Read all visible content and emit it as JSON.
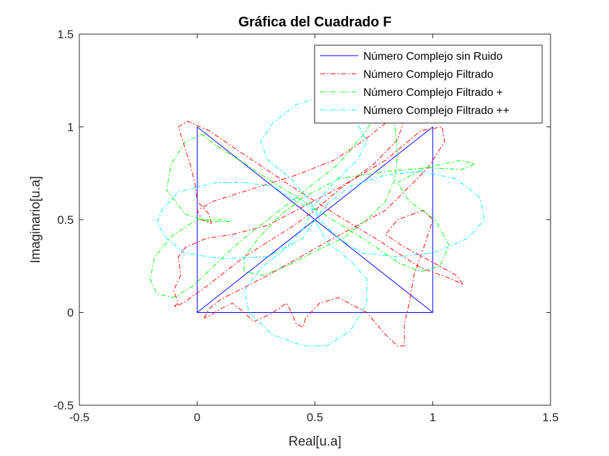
{
  "chart_data": {
    "type": "line",
    "title": "Gráfica del Cuadrado F",
    "xlabel": "Real[u.a]",
    "ylabel": "Imaginario[u.a]",
    "xlim": [
      -0.5,
      1.5
    ],
    "ylim": [
      -0.5,
      1.5
    ],
    "xticks": [
      -0.5,
      0,
      0.5,
      1,
      1.5
    ],
    "yticks": [
      -0.5,
      0,
      0.5,
      1,
      1.5
    ],
    "xtick_labels": [
      "-0.5",
      "0",
      "0.5",
      "1",
      "1.5"
    ],
    "ytick_labels": [
      "-0.5",
      "0",
      "0.5",
      "1",
      "1.5"
    ],
    "grid": false,
    "legend_position": "top-right",
    "series": [
      {
        "name": "Número Complejo sin Ruido",
        "color": "#0000ff",
        "dash": "solid",
        "points": [
          [
            0,
            0
          ],
          [
            1,
            0
          ],
          [
            1,
            1
          ],
          [
            0,
            0
          ],
          [
            0,
            1
          ],
          [
            1,
            0
          ]
        ]
      },
      {
        "name": "Número Complejo Filtrado",
        "color": "#ff0000",
        "dash": "dashdot",
        "points": [
          [
            0.03,
            -0.03
          ],
          [
            0.05,
            0.02
          ],
          [
            0.1,
            0.07
          ],
          [
            0.3,
            0.2
          ],
          [
            0.55,
            0.38
          ],
          [
            0.8,
            0.55
          ],
          [
            0.98,
            0.78
          ],
          [
            1.05,
            0.92
          ],
          [
            1.04,
            1.0
          ],
          [
            0.95,
            0.98
          ],
          [
            0.8,
            0.82
          ],
          [
            0.6,
            0.67
          ],
          [
            0.45,
            0.57
          ],
          [
            0.3,
            0.47
          ],
          [
            0.15,
            0.42
          ],
          [
            0.04,
            0.4
          ],
          [
            -0.05,
            0.35
          ],
          [
            -0.08,
            0.3
          ],
          [
            -0.07,
            0.2
          ],
          [
            -0.1,
            0.12
          ],
          [
            -0.08,
            0.05
          ],
          [
            -0.1,
            0.03
          ],
          [
            -0.06,
            0.05
          ],
          [
            0.05,
            0.15
          ],
          [
            0.2,
            0.3
          ],
          [
            0.4,
            0.46
          ],
          [
            0.5,
            0.55
          ],
          [
            0.6,
            0.66
          ],
          [
            0.75,
            0.8
          ],
          [
            0.85,
            0.93
          ],
          [
            0.88,
            1.04
          ],
          [
            0.84,
            1.08
          ],
          [
            0.8,
            1.02
          ],
          [
            0.7,
            0.92
          ],
          [
            0.58,
            0.82
          ],
          [
            0.42,
            0.74
          ],
          [
            0.22,
            0.66
          ],
          [
            0.07,
            0.6
          ],
          [
            0.0,
            0.55
          ],
          [
            0.02,
            0.5
          ],
          [
            0.06,
            0.48
          ],
          [
            0.05,
            0.53
          ],
          [
            0.0,
            0.6
          ],
          [
            -0.01,
            0.7
          ],
          [
            -0.03,
            0.8
          ],
          [
            -0.06,
            0.92
          ],
          [
            -0.08,
            1.0
          ],
          [
            -0.04,
            1.03
          ],
          [
            0.05,
            0.98
          ],
          [
            0.2,
            0.85
          ],
          [
            0.4,
            0.68
          ],
          [
            0.6,
            0.52
          ],
          [
            0.78,
            0.38
          ],
          [
            0.95,
            0.24
          ],
          [
            1.08,
            0.18
          ],
          [
            1.13,
            0.15
          ],
          [
            1.1,
            0.2
          ],
          [
            1.0,
            0.27
          ],
          [
            0.87,
            0.36
          ],
          [
            0.8,
            0.42
          ],
          [
            0.85,
            0.5
          ],
          [
            0.96,
            0.55
          ],
          [
            1.0,
            0.5
          ],
          [
            0.97,
            0.38
          ],
          [
            0.92,
            0.2
          ],
          [
            0.9,
            0.05
          ],
          [
            0.88,
            -0.06
          ],
          [
            0.88,
            -0.18
          ],
          [
            0.85,
            -0.18
          ],
          [
            0.8,
            -0.12
          ],
          [
            0.72,
            0.0
          ],
          [
            0.6,
            0.08
          ],
          [
            0.52,
            0.05
          ],
          [
            0.46,
            -0.03
          ],
          [
            0.45,
            -0.08
          ],
          [
            0.42,
            -0.06
          ],
          [
            0.4,
            0.0
          ],
          [
            0.38,
            0.05
          ],
          [
            0.31,
            -0.01
          ],
          [
            0.24,
            -0.05
          ],
          [
            0.2,
            0.0
          ],
          [
            0.15,
            0.05
          ],
          [
            0.1,
            0.02
          ],
          [
            0.05,
            -0.02
          ],
          [
            0.03,
            -0.03
          ]
        ]
      },
      {
        "name": "Número Complejo Filtrado +",
        "color": "#00ff00",
        "dash": "dashdot",
        "points": [
          [
            0.14,
            0.49
          ],
          [
            0.05,
            0.49
          ],
          [
            -0.05,
            0.53
          ],
          [
            -0.13,
            0.66
          ],
          [
            -0.11,
            0.8
          ],
          [
            -0.05,
            0.92
          ],
          [
            0.02,
            0.96
          ],
          [
            0.08,
            0.9
          ],
          [
            0.18,
            0.82
          ],
          [
            0.3,
            0.72
          ],
          [
            0.45,
            0.6
          ],
          [
            0.6,
            0.48
          ],
          [
            0.75,
            0.36
          ],
          [
            0.85,
            0.27
          ],
          [
            0.95,
            0.22
          ],
          [
            1.03,
            0.25
          ],
          [
            1.07,
            0.36
          ],
          [
            1.01,
            0.5
          ],
          [
            0.9,
            0.6
          ],
          [
            0.85,
            0.7
          ],
          [
            0.97,
            0.78
          ],
          [
            1.12,
            0.82
          ],
          [
            1.18,
            0.8
          ],
          [
            1.12,
            0.77
          ],
          [
            0.98,
            0.78
          ],
          [
            0.8,
            0.76
          ],
          [
            0.6,
            0.72
          ],
          [
            0.45,
            0.62
          ],
          [
            0.35,
            0.52
          ],
          [
            0.26,
            0.4
          ],
          [
            0.2,
            0.3
          ],
          [
            0.2,
            0.22
          ],
          [
            0.28,
            0.2
          ],
          [
            0.38,
            0.25
          ],
          [
            0.5,
            0.33
          ],
          [
            0.62,
            0.4
          ],
          [
            0.72,
            0.5
          ],
          [
            0.8,
            0.6
          ],
          [
            0.84,
            0.72
          ],
          [
            0.85,
            0.85
          ],
          [
            0.84,
            1.0
          ],
          [
            0.82,
            1.1
          ],
          [
            0.77,
            1.08
          ],
          [
            0.7,
            0.95
          ],
          [
            0.6,
            0.8
          ],
          [
            0.45,
            0.65
          ],
          [
            0.3,
            0.5
          ],
          [
            0.18,
            0.38
          ],
          [
            0.07,
            0.25
          ],
          [
            -0.02,
            0.14
          ],
          [
            -0.1,
            0.08
          ],
          [
            -0.17,
            0.1
          ],
          [
            -0.2,
            0.18
          ],
          [
            -0.18,
            0.3
          ],
          [
            -0.1,
            0.42
          ],
          [
            0.0,
            0.5
          ],
          [
            0.1,
            0.5
          ],
          [
            0.14,
            0.49
          ]
        ]
      },
      {
        "name": "Número Complejo Filtrado ++",
        "color": "#00ffff",
        "dash": "dashdot",
        "points": [
          [
            0.5,
            0.55
          ],
          [
            0.42,
            0.6
          ],
          [
            0.32,
            0.68
          ],
          [
            0.2,
            0.7
          ],
          [
            0.08,
            0.7
          ],
          [
            -0.08,
            0.65
          ],
          [
            -0.15,
            0.55
          ],
          [
            -0.17,
            0.48
          ],
          [
            -0.13,
            0.4
          ],
          [
            -0.05,
            0.32
          ],
          [
            0.1,
            0.29
          ],
          [
            0.3,
            0.3
          ],
          [
            0.45,
            0.4
          ],
          [
            0.5,
            0.5
          ],
          [
            0.55,
            0.58
          ],
          [
            0.65,
            0.68
          ],
          [
            0.8,
            0.74
          ],
          [
            0.95,
            0.76
          ],
          [
            1.1,
            0.72
          ],
          [
            1.2,
            0.62
          ],
          [
            1.22,
            0.5
          ],
          [
            1.15,
            0.4
          ],
          [
            1.0,
            0.32
          ],
          [
            0.85,
            0.3
          ],
          [
            0.7,
            0.32
          ],
          [
            0.6,
            0.4
          ],
          [
            0.52,
            0.5
          ],
          [
            0.48,
            0.6
          ],
          [
            0.4,
            0.72
          ],
          [
            0.3,
            0.82
          ],
          [
            0.27,
            0.92
          ],
          [
            0.32,
            1.02
          ],
          [
            0.42,
            1.12
          ],
          [
            0.5,
            1.15
          ],
          [
            0.58,
            1.12
          ],
          [
            0.68,
            1.02
          ],
          [
            0.72,
            0.92
          ],
          [
            0.68,
            0.82
          ],
          [
            0.58,
            0.7
          ],
          [
            0.5,
            0.58
          ],
          [
            0.45,
            0.45
          ],
          [
            0.38,
            0.35
          ],
          [
            0.28,
            0.25
          ],
          [
            0.2,
            0.12
          ],
          [
            0.22,
            0.0
          ],
          [
            0.32,
            -0.12
          ],
          [
            0.45,
            -0.18
          ],
          [
            0.55,
            -0.18
          ],
          [
            0.65,
            -0.1
          ],
          [
            0.72,
            0.05
          ],
          [
            0.72,
            0.18
          ],
          [
            0.65,
            0.28
          ],
          [
            0.55,
            0.38
          ],
          [
            0.5,
            0.5
          ]
        ]
      }
    ]
  }
}
